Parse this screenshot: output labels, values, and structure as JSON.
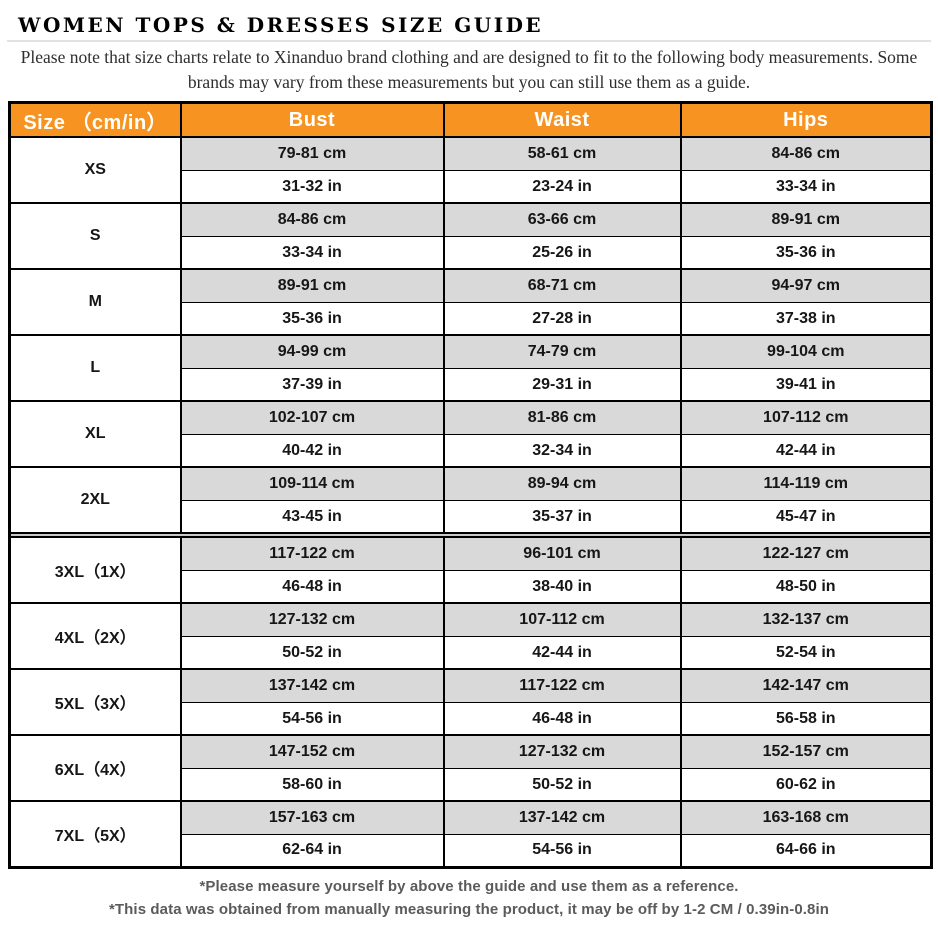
{
  "page": {
    "title": "WOMEN TOPS & DRESSES SIZE GUIDE",
    "note": "Please note that size charts relate to Xinanduo brand clothing and are designed to fit to the following body measurements. Some brands may vary from these measurements but you can still use them as a guide."
  },
  "colors": {
    "header_orange": "#f79421",
    "row_gray": "#d9d9d9",
    "border_black": "#000000",
    "footnote_gray": "#5b5b5b"
  },
  "table": {
    "headers": [
      "Size （cm/in）",
      "Bust",
      "Waist",
      "Hips"
    ],
    "rows": [
      {
        "size": "XS",
        "bust_cm": "79-81 cm",
        "waist_cm": "58-61 cm",
        "hips_cm": "84-86 cm",
        "bust_in": "31-32 in",
        "waist_in": "23-24 in",
        "hips_in": "33-34 in"
      },
      {
        "size": "S",
        "bust_cm": "84-86 cm",
        "waist_cm": "63-66 cm",
        "hips_cm": "89-91 cm",
        "bust_in": "33-34 in",
        "waist_in": "25-26 in",
        "hips_in": "35-36 in"
      },
      {
        "size": "M",
        "bust_cm": "89-91 cm",
        "waist_cm": "68-71 cm",
        "hips_cm": "94-97 cm",
        "bust_in": "35-36 in",
        "waist_in": "27-28 in",
        "hips_in": "37-38 in"
      },
      {
        "size": "L",
        "bust_cm": "94-99 cm",
        "waist_cm": "74-79 cm",
        "hips_cm": "99-104 cm",
        "bust_in": "37-39 in",
        "waist_in": "29-31 in",
        "hips_in": "39-41 in"
      },
      {
        "size": "XL",
        "bust_cm": "102-107 cm",
        "waist_cm": "81-86 cm",
        "hips_cm": "107-112 cm",
        "bust_in": "40-42 in",
        "waist_in": "32-34 in",
        "hips_in": "42-44 in"
      },
      {
        "size": "2XL",
        "bust_cm": "109-114 cm",
        "waist_cm": "89-94 cm",
        "hips_cm": "114-119 cm",
        "bust_in": "43-45 in",
        "waist_in": "35-37 in",
        "hips_in": "45-47 in"
      },
      {
        "size": "3XL（1X）",
        "thick_divider_before": true,
        "bust_cm": "117-122 cm",
        "waist_cm": "96-101 cm",
        "hips_cm": "122-127 cm",
        "bust_in": "46-48 in",
        "waist_in": "38-40 in",
        "hips_in": "48-50 in"
      },
      {
        "size": "4XL（2X）",
        "bust_cm": "127-132 cm",
        "waist_cm": "107-112 cm",
        "hips_cm": "132-137 cm",
        "bust_in": "50-52 in",
        "waist_in": "42-44 in",
        "hips_in": "52-54 in"
      },
      {
        "size": "5XL（3X）",
        "bust_cm": "137-142 cm",
        "waist_cm": "117-122 cm",
        "hips_cm": "142-147 cm",
        "bust_in": "54-56 in",
        "waist_in": "46-48 in",
        "hips_in": "56-58 in"
      },
      {
        "size": "6XL（4X）",
        "bust_cm": "147-152 cm",
        "waist_cm": "127-132 cm",
        "hips_cm": "152-157 cm",
        "bust_in": "58-60 in",
        "waist_in": "50-52 in",
        "hips_in": "60-62 in"
      },
      {
        "size": "7XL（5X）",
        "bust_cm": "157-163 cm",
        "waist_cm": "137-142 cm",
        "hips_cm": "163-168 cm",
        "bust_in": "62-64 in",
        "waist_in": "54-56 in",
        "hips_in": "64-66 in"
      }
    ]
  },
  "footnotes": [
    "*Please measure yourself by above the guide and use them as a reference.",
    "*This data was obtained from manually measuring the product, it may be off by 1-2 CM / 0.39in-0.8in"
  ]
}
